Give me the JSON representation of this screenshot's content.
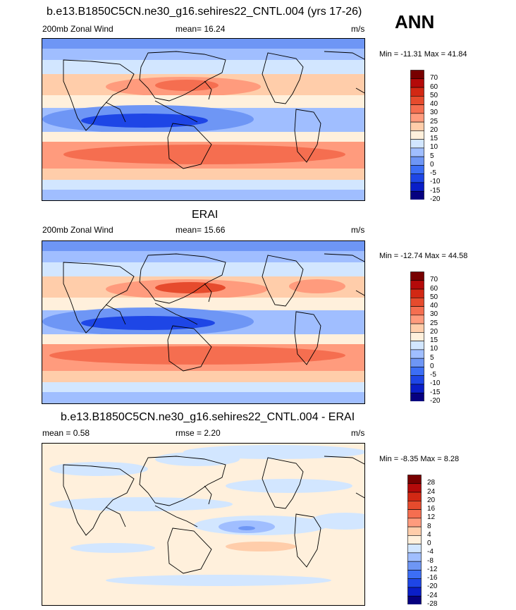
{
  "season_label": "ANN",
  "colors": {
    "main_scale": [
      "#060080",
      "#0a1ec8",
      "#1e46e6",
      "#3c6ef5",
      "#6e96f5",
      "#a0beff",
      "#d2e6ff",
      "#fff0dc",
      "#ffcdaa",
      "#ff9b7d",
      "#f56e50",
      "#e64b2d",
      "#d22814",
      "#b40a0a",
      "#780000"
    ],
    "diff_scale": [
      "#060080",
      "#0a1ec8",
      "#1e46e6",
      "#3c6ef5",
      "#6e96f5",
      "#a0beff",
      "#d2e6ff",
      "#fff0dc",
      "#ffcdaa",
      "#ff9b7d",
      "#f56e50",
      "#e64b2d",
      "#d22814",
      "#b40a0a",
      "#780000"
    ]
  },
  "panels": [
    {
      "title": "b.e13.B1850C5CN.ne30_g16.sehires22_CNTL.004 (yrs 17-26)",
      "left_label": "200mb Zonal Wind",
      "center_label": "mean=  16.24",
      "right_label": "m/s",
      "minmax": "Min = -11.31 Max =  41.84",
      "colorbar_ticks": [
        "70",
        "60",
        "50",
        "40",
        "30",
        "25",
        "20",
        "15",
        "10",
        "5",
        "0",
        "-5",
        "-10",
        "-15",
        "-20"
      ]
    },
    {
      "title": "ERAI",
      "left_label": "200mb Zonal Wind",
      "center_label": "mean=  15.66",
      "right_label": "m/s",
      "minmax": "Min = -12.74 Max =  44.58",
      "colorbar_ticks": [
        "70",
        "60",
        "50",
        "40",
        "30",
        "25",
        "20",
        "15",
        "10",
        "5",
        "0",
        "-5",
        "-10",
        "-15",
        "-20"
      ]
    },
    {
      "title": "b.e13.B1850C5CN.ne30_g16.sehires22_CNTL.004 - ERAI",
      "left_label": "mean =   0.58",
      "center_label": "rmse =   2.20",
      "right_label": "m/s",
      "minmax": "Min =  -8.35 Max =   8.28",
      "colorbar_ticks": [
        "28",
        "24",
        "20",
        "16",
        "12",
        "8",
        "4",
        "0",
        "-4",
        "-8",
        "-12",
        "-16",
        "-20",
        "-24",
        "-28"
      ]
    }
  ],
  "chart_data": [
    {
      "type": "heatmap",
      "title": "b.e13.B1850C5CN.ne30_g16.sehires22_CNTL.004 (yrs 17-26)",
      "variable": "200mb Zonal Wind",
      "units": "m/s",
      "mean": 16.24,
      "min": -11.31,
      "max": 41.84,
      "contour_levels": [
        -20,
        -15,
        -10,
        -5,
        0,
        5,
        10,
        15,
        20,
        25,
        30,
        40,
        50,
        60,
        70
      ],
      "zonal_band_values": [
        {
          "lat": 80,
          "value": 8
        },
        {
          "lat": 60,
          "value": 15
        },
        {
          "lat": 40,
          "value": 25
        },
        {
          "lat": 30,
          "value": 30
        },
        {
          "lat": 15,
          "value": 10
        },
        {
          "lat": 0,
          "value": -3
        },
        {
          "lat": -10,
          "value": 5
        },
        {
          "lat": -30,
          "value": 30
        },
        {
          "lat": -45,
          "value": 28
        },
        {
          "lat": -60,
          "value": 18
        },
        {
          "lat": -80,
          "value": 8
        }
      ]
    },
    {
      "type": "heatmap",
      "title": "ERAI",
      "variable": "200mb Zonal Wind",
      "units": "m/s",
      "mean": 15.66,
      "min": -12.74,
      "max": 44.58,
      "contour_levels": [
        -20,
        -15,
        -10,
        -5,
        0,
        5,
        10,
        15,
        20,
        25,
        30,
        40,
        50,
        60,
        70
      ],
      "zonal_band_values": [
        {
          "lat": 80,
          "value": 8
        },
        {
          "lat": 60,
          "value": 15
        },
        {
          "lat": 40,
          "value": 25
        },
        {
          "lat": 30,
          "value": 32
        },
        {
          "lat": 15,
          "value": 10
        },
        {
          "lat": 0,
          "value": -3
        },
        {
          "lat": -10,
          "value": 5
        },
        {
          "lat": -30,
          "value": 30
        },
        {
          "lat": -45,
          "value": 26
        },
        {
          "lat": -60,
          "value": 18
        },
        {
          "lat": -80,
          "value": 8
        }
      ]
    },
    {
      "type": "heatmap",
      "title": "b.e13.B1850C5CN.ne30_g16.sehires22_CNTL.004 - ERAI",
      "units": "m/s",
      "mean": 0.58,
      "rmse": 2.2,
      "min": -8.35,
      "max": 8.28,
      "contour_levels": [
        -28,
        -24,
        -20,
        -16,
        -12,
        -8,
        -4,
        0,
        4,
        8,
        12,
        16,
        20,
        24,
        28
      ],
      "zonal_band_values": [
        {
          "lat": 80,
          "value": 1
        },
        {
          "lat": 60,
          "value": -1
        },
        {
          "lat": 40,
          "value": 1
        },
        {
          "lat": 20,
          "value": -1
        },
        {
          "lat": 0,
          "value": 1
        },
        {
          "lat": -10,
          "value": -2
        },
        {
          "lat": -30,
          "value": 1
        },
        {
          "lat": -50,
          "value": 1
        },
        {
          "lat": -80,
          "value": 1
        }
      ]
    }
  ]
}
